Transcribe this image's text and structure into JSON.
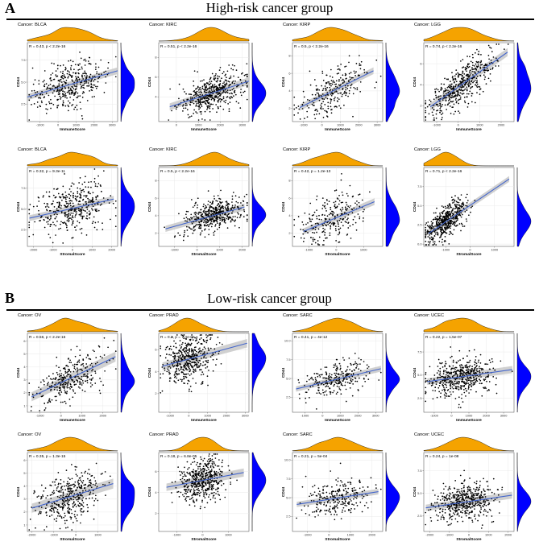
{
  "panels": [
    {
      "letter": "A",
      "title": "High-risk cancer group"
    },
    {
      "letter": "B",
      "title": "Low-risk cancer group"
    }
  ],
  "colors": {
    "density_top": "#F5A300",
    "density_side": "#0000FF",
    "point": "#000000",
    "fit_line": "#4466CC",
    "ci_band": "#C8C8C8"
  },
  "chart_data": [
    {
      "type": "scatter",
      "group": "High-risk cancer group",
      "title": "Cancer: BLCA",
      "stat": "R = 0.43, p < 2.2e-16",
      "xlabel": "ImmuneScore",
      "ylabel": "CD44",
      "x_ticks": [
        -1000,
        0,
        1000,
        2000,
        3000
      ],
      "y_ticks": [
        2.5,
        5.0,
        7.5
      ],
      "xlim": [
        -1700,
        3300
      ],
      "ylim": [
        0.5,
        9.5
      ],
      "fit": [
        [
          -1700,
          3.3
        ],
        [
          3300,
          6.3
        ]
      ],
      "n_points": 400,
      "x_center": 800,
      "x_spread": 1000,
      "resid_spread": 1.3,
      "top_peak": 0.55,
      "side_peak": 0.55,
      "seed": 1
    },
    {
      "type": "scatter",
      "group": "High-risk cancer group",
      "title": "Cancer: KIRC",
      "stat": "R = 0.51, p < 2.2e-16",
      "xlabel": "ImmuneScore",
      "ylabel": "CD44",
      "x_ticks": [
        0,
        1000,
        2000,
        3000
      ],
      "y_ticks": [
        4,
        6,
        8
      ],
      "xlim": [
        -800,
        3300
      ],
      "ylim": [
        1.5,
        9.5
      ],
      "fit": [
        [
          -300,
          3.0
        ],
        [
          3300,
          5.6
        ]
      ],
      "n_points": 500,
      "x_center": 1600,
      "x_spread": 700,
      "resid_spread": 0.9,
      "top_peak": 0.6,
      "side_peak": 0.45,
      "seed": 2
    },
    {
      "type": "scatter",
      "group": "High-risk cancer group",
      "title": "Cancer: KIRP",
      "stat": "R = 0.5, p < 2.2e-16",
      "xlabel": "ImmuneScore",
      "ylabel": "CD44",
      "x_ticks": [
        -1000,
        0,
        1000,
        2000,
        3000
      ],
      "y_ticks": [
        2,
        4,
        6,
        8
      ],
      "xlim": [
        -1600,
        3300
      ],
      "ylim": [
        0.5,
        9.5
      ],
      "fit": [
        [
          -1200,
          2.1
        ],
        [
          2800,
          6.3
        ]
      ],
      "n_points": 260,
      "x_center": 700,
      "x_spread": 900,
      "resid_spread": 1.3,
      "top_peak": 0.5,
      "side_peak": 0.55,
      "seed": 3
    },
    {
      "type": "scatter",
      "group": "High-risk cancer group",
      "title": "Cancer: LGG",
      "stat": "R = 0.74, p < 2.2e-16",
      "xlabel": "ImmuneScore",
      "ylabel": "CD44",
      "x_ticks": [
        -1000,
        0,
        1000,
        2000
      ],
      "y_ticks": [
        2,
        4,
        6
      ],
      "xlim": [
        -1600,
        2600
      ],
      "ylim": [
        0.5,
        8.0
      ],
      "fit": [
        [
          -1300,
          1.9
        ],
        [
          2300,
          7.1
        ]
      ],
      "n_points": 500,
      "x_center": 100,
      "x_spread": 750,
      "resid_spread": 0.9,
      "top_peak": 0.35,
      "side_peak": 0.45,
      "seed": 4
    },
    {
      "type": "scatter",
      "group": "High-risk cancer group",
      "title": "Cancer: BLCA",
      "stat": "R = 0.32, p = 9.3e-11",
      "xlabel": "StromalScore",
      "ylabel": "CD44",
      "x_ticks": [
        -2000,
        -1000,
        0,
        1000,
        2000
      ],
      "y_ticks": [
        2.5,
        5.0,
        7.5
      ],
      "xlim": [
        -2300,
        2300
      ],
      "ylim": [
        0.5,
        10.0
      ],
      "fit": [
        [
          -2200,
          3.9
        ],
        [
          2100,
          6.2
        ]
      ],
      "n_points": 400,
      "x_center": 0,
      "x_spread": 900,
      "resid_spread": 1.5,
      "top_peak": 0.55,
      "side_peak": 0.55,
      "seed": 5
    },
    {
      "type": "scatter",
      "group": "High-risk cancer group",
      "title": "Cancer: KIRC",
      "stat": "R = 0.5, p < 2.2e-16",
      "xlabel": "StromalScore",
      "ylabel": "CD44",
      "x_ticks": [
        -1000,
        0,
        1000,
        2000
      ],
      "y_ticks": [
        2,
        4,
        6,
        8
      ],
      "xlim": [
        -1700,
        2300
      ],
      "ylim": [
        0.5,
        9.5
      ],
      "fit": [
        [
          -1400,
          2.5
        ],
        [
          2100,
          5.0
        ]
      ],
      "n_points": 500,
      "x_center": 800,
      "x_spread": 650,
      "resid_spread": 0.9,
      "top_peak": 0.6,
      "side_peak": 0.45,
      "seed": 6
    },
    {
      "type": "scatter",
      "group": "High-risk cancer group",
      "title": "Cancer: KIRP",
      "stat": "R = 0.42, p = 1.2e-13",
      "xlabel": "StromalScore",
      "ylabel": "CD44",
      "x_ticks": [
        -1000,
        0,
        1000
      ],
      "y_ticks": [
        2,
        4,
        6,
        8
      ],
      "xlim": [
        -1600,
        1700
      ],
      "ylim": [
        0.5,
        9.5
      ],
      "fit": [
        [
          -1200,
          2.2
        ],
        [
          1400,
          5.6
        ]
      ],
      "n_points": 260,
      "x_center": -200,
      "x_spread": 600,
      "resid_spread": 1.3,
      "top_peak": 0.45,
      "side_peak": 0.55,
      "seed": 7
    },
    {
      "type": "scatter",
      "group": "High-risk cancer group",
      "title": "Cancer: LGG",
      "stat": "R = 0.71, p < 2.2e-16",
      "xlabel": "StromalScore",
      "ylabel": "CD44",
      "x_ticks": [
        -1000,
        0,
        1000
      ],
      "y_ticks": [
        0.0,
        2.5,
        5.0,
        7.5
      ],
      "xlim": [
        -1900,
        1800
      ],
      "ylim": [
        -0.3,
        10.0
      ],
      "fit": [
        [
          -1700,
          1.4
        ],
        [
          1600,
          8.5
        ]
      ],
      "n_points": 500,
      "x_center": -1000,
      "x_spread": 450,
      "resid_spread": 1.0,
      "top_peak": 0.25,
      "side_peak": 0.4,
      "seed": 8
    },
    {
      "type": "scatter",
      "group": "Low-risk cancer group",
      "title": "Cancer: OV",
      "stat": "R = 0.56, p < 2.2e-16",
      "xlabel": "ImmuneScore",
      "ylabel": "CD44",
      "x_ticks": [
        -1000,
        0,
        1000,
        2000
      ],
      "y_ticks": [
        1,
        2,
        3,
        4,
        5,
        6
      ],
      "xlim": [
        -1600,
        2700
      ],
      "ylim": [
        0.5,
        6.6
      ],
      "fit": [
        [
          -1400,
          1.7
        ],
        [
          2600,
          4.8
        ]
      ],
      "n_points": 330,
      "x_center": 400,
      "x_spread": 800,
      "resid_spread": 0.8,
      "top_peak": 0.5,
      "side_peak": 0.5,
      "seed": 9
    },
    {
      "type": "scatter",
      "group": "Low-risk cancer group",
      "title": "Cancer: PRAD",
      "stat": "R = 0.2, p = 7.4e-06",
      "xlabel": "ImmuneScore",
      "ylabel": "CD44",
      "x_ticks": [
        -1000,
        0,
        1000,
        2000,
        3000
      ],
      "y_ticks": [
        2,
        4,
        6
      ],
      "xlim": [
        -1600,
        3200
      ],
      "ylim": [
        0.3,
        7.5
      ],
      "fit": [
        [
          -1400,
          4.5
        ],
        [
          3100,
          6.6
        ]
      ],
      "n_points": 480,
      "x_center": 0,
      "x_spread": 650,
      "resid_spread": 1.1,
      "top_peak": 0.3,
      "side_peak": 0.7,
      "seed": 10
    },
    {
      "type": "scatter",
      "group": "Low-risk cancer group",
      "title": "Cancer: SARC",
      "stat": "R = 0.41, p = 4e-12",
      "xlabel": "ImmuneScore",
      "ylabel": "CD44",
      "x_ticks": [
        -1000,
        0,
        1000,
        2000,
        3000
      ],
      "y_ticks": [
        2.5,
        5.0,
        7.5,
        10.0
      ],
      "xlim": [
        -1700,
        3400
      ],
      "ylim": [
        0.5,
        11.0
      ],
      "fit": [
        [
          -1500,
          3.6
        ],
        [
          3300,
          6.3
        ]
      ],
      "n_points": 260,
      "x_center": 800,
      "x_spread": 900,
      "resid_spread": 1.1,
      "top_peak": 0.5,
      "side_peak": 0.5,
      "seed": 11
    },
    {
      "type": "scatter",
      "group": "Low-risk cancer group",
      "title": "Cancer: UCEC",
      "stat": "R = 0.22, p = 1.5e-07",
      "xlabel": "ImmuneScore",
      "ylabel": "CD44",
      "x_ticks": [
        -1000,
        0,
        1000,
        2000,
        3000
      ],
      "y_ticks": [
        2.5,
        5.0,
        7.5
      ],
      "xlim": [
        -1600,
        3600
      ],
      "ylim": [
        1.0,
        9.5
      ],
      "fit": [
        [
          -1400,
          4.3
        ],
        [
          3500,
          5.6
        ]
      ],
      "n_points": 500,
      "x_center": 400,
      "x_spread": 900,
      "resid_spread": 1.0,
      "top_peak": 0.4,
      "side_peak": 0.5,
      "seed": 12
    },
    {
      "type": "scatter",
      "group": "Low-risk cancer group",
      "title": "Cancer: OV",
      "stat": "R = 0.35, p = 1.3e-15",
      "xlabel": "StromalScore",
      "ylabel": "CD44",
      "x_ticks": [
        -2000,
        -1000,
        0,
        1000
      ],
      "y_ticks": [
        1,
        2,
        3,
        4,
        5,
        6
      ],
      "xlim": [
        -2200,
        1900
      ],
      "ylim": [
        0.5,
        6.6
      ],
      "fit": [
        [
          -2000,
          2.3
        ],
        [
          1700,
          4.2
        ]
      ],
      "n_points": 400,
      "x_center": -300,
      "x_spread": 700,
      "resid_spread": 0.9,
      "top_peak": 0.5,
      "side_peak": 0.5,
      "seed": 13
    },
    {
      "type": "scatter",
      "group": "Low-risk cancer group",
      "title": "Cancer: PRAD",
      "stat": "R = 0.18, p = 6.8e-05",
      "xlabel": "StromalScore",
      "ylabel": "CD44",
      "x_ticks": [
        -1000,
        0,
        1000
      ],
      "y_ticks": [
        2,
        4,
        6
      ],
      "xlim": [
        -1700,
        1800
      ],
      "ylim": [
        0.3,
        7.8
      ],
      "fit": [
        [
          -1400,
          4.5
        ],
        [
          1600,
          5.9
        ]
      ],
      "n_points": 480,
      "x_center": 0,
      "x_spread": 450,
      "resid_spread": 1.0,
      "top_peak": 0.45,
      "side_peak": 0.7,
      "seed": 14
    },
    {
      "type": "scatter",
      "group": "Low-risk cancer group",
      "title": "Cancer: SARC",
      "stat": "R = 0.21, p = 5e-04",
      "xlabel": "StromalScore",
      "ylabel": "CD44",
      "x_ticks": [
        -1000,
        0,
        1000,
        2000
      ],
      "y_ticks": [
        2.5,
        5.0,
        7.5,
        10.0
      ],
      "xlim": [
        -1700,
        2500
      ],
      "ylim": [
        0.5,
        11.0
      ],
      "fit": [
        [
          -1500,
          4.1
        ],
        [
          2300,
          5.8
        ]
      ],
      "n_points": 260,
      "x_center": 400,
      "x_spread": 750,
      "resid_spread": 1.2,
      "top_peak": 0.55,
      "side_peak": 0.5,
      "seed": 15
    },
    {
      "type": "scatter",
      "group": "Low-risk cancer group",
      "title": "Cancer: UCEC",
      "stat": "R = 0.24, p = 1e-08",
      "xlabel": "StromalScore",
      "ylabel": "CD44",
      "x_ticks": [
        -2000,
        -1000,
        0,
        1000,
        2000
      ],
      "y_ticks": [
        2.5,
        5.0,
        7.5
      ],
      "xlim": [
        -2300,
        2300
      ],
      "ylim": [
        0.8,
        9.5
      ],
      "fit": [
        [
          -2200,
          3.4
        ],
        [
          2200,
          4.8
        ]
      ],
      "n_points": 500,
      "x_center": -200,
      "x_spread": 800,
      "resid_spread": 1.0,
      "top_peak": 0.45,
      "side_peak": 0.45,
      "seed": 16
    }
  ]
}
